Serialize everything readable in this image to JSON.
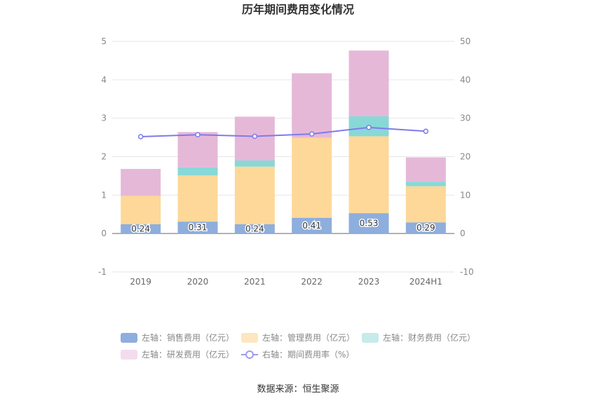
{
  "chart_data": {
    "type": "bar",
    "title": "历年期间费用变化情况",
    "categories": [
      "2019",
      "2020",
      "2021",
      "2022",
      "2023",
      "2024H1"
    ],
    "left_axis": {
      "ylim": [
        -1,
        5
      ],
      "ticks": [
        "-1",
        "0",
        "1",
        "2",
        "3",
        "4",
        "5"
      ]
    },
    "right_axis": {
      "ylim": [
        -10,
        50
      ],
      "ticks": [
        "-10",
        "0",
        "10",
        "20",
        "30",
        "40",
        "50"
      ]
    },
    "stacked": true,
    "grid": true,
    "legend_position": "bottom",
    "series": [
      {
        "name": "左轴：销售费用（亿元）",
        "axis": "left",
        "type": "bar",
        "values": [
          0.24,
          0.31,
          0.24,
          0.41,
          0.53,
          0.29
        ],
        "data_labels": [
          "0.24",
          "0.31",
          "0.24",
          "0.41",
          "0.53",
          "0.29"
        ],
        "color": "#8eaedd"
      },
      {
        "name": "左轴：管理费用（亿元）",
        "axis": "left",
        "type": "bar",
        "values": [
          0.74,
          1.2,
          1.5,
          2.08,
          2.0,
          0.94
        ],
        "color": "#fdd898"
      },
      {
        "name": "左轴：财务费用（亿元）",
        "axis": "left",
        "type": "bar",
        "values": [
          0.0,
          0.21,
          0.16,
          0.0,
          0.52,
          0.12
        ],
        "color": "#88d8d8"
      },
      {
        "name": "左轴：研发费用（亿元）",
        "axis": "left",
        "type": "bar",
        "values": [
          0.7,
          0.92,
          1.14,
          1.68,
          1.71,
          0.63
        ],
        "color": "#e6b8d8"
      },
      {
        "name": "右轴：期间费用率（%）",
        "axis": "right",
        "type": "line",
        "values": [
          25.2,
          25.7,
          25.3,
          25.9,
          27.6,
          26.6
        ],
        "color": "#7d7bea"
      }
    ],
    "source": "数据来源：恒生聚源"
  },
  "legend_colors": {
    "sales": "#8eaedd",
    "admin": "#fde6c0",
    "finance": "#c5ebeb",
    "rd": "#f3dcee",
    "rate": "#9d9bf0"
  }
}
